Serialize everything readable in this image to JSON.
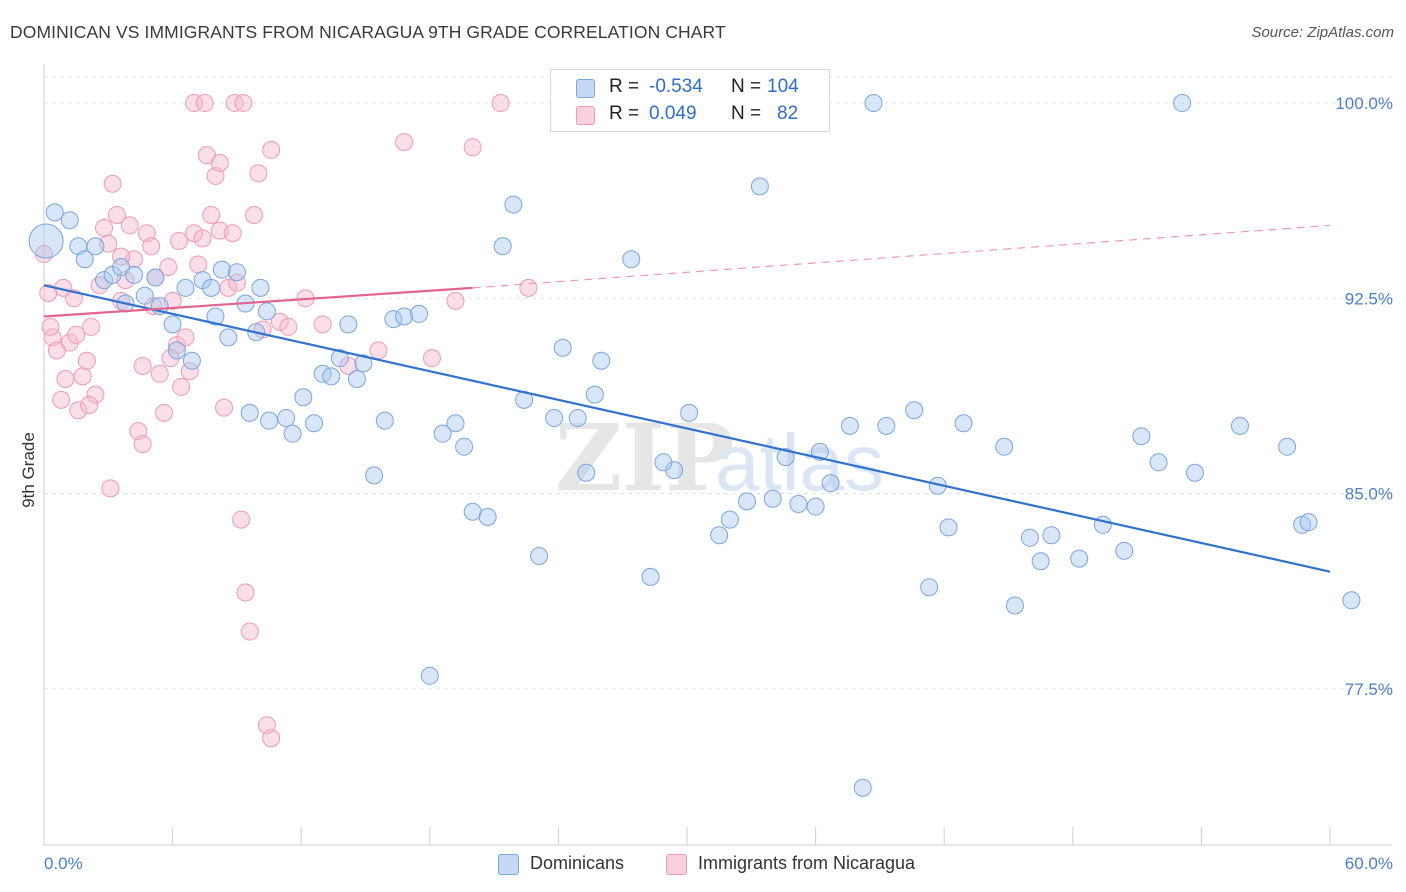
{
  "title": "DOMINICAN VS IMMIGRANTS FROM NICARAGUA 9TH GRADE CORRELATION CHART",
  "source": "Source: ZipAtlas.com",
  "watermark": {
    "part1": "ZIP",
    "part2": "atlas"
  },
  "legend_stats": [
    {
      "r_label": "R =",
      "r_value": "-0.534",
      "n_label": "N =",
      "n_value": "104",
      "color": "#a9c7ee"
    },
    {
      "r_label": "R =",
      "r_value": "0.049",
      "n_label": "N =",
      "n_value": "82",
      "color": "#f6b8cb"
    }
  ],
  "bottom_legend": [
    {
      "label": "Dominicans",
      "color": "#a9c7ee"
    },
    {
      "label": "Immigrants from Nicaragua",
      "color": "#f6b8cb"
    }
  ],
  "chart_data": {
    "type": "scatter",
    "title": "DOMINICAN VS IMMIGRANTS FROM NICARAGUA 9TH GRADE CORRELATION CHART",
    "xlabel": "",
    "ylabel": "9th Grade",
    "xlim": [
      0,
      60
    ],
    "ylim": [
      71.5,
      101.5
    ],
    "x_tick_labels": [
      "0.0%",
      "60.0%"
    ],
    "y_ticks": [
      77.5,
      85.0,
      92.5,
      100.0
    ],
    "y_tick_labels": [
      "77.5%",
      "85.0%",
      "92.5%",
      "100.0%"
    ],
    "grid": true,
    "legend_position": "top-center",
    "series": [
      {
        "name": "Dominicans",
        "color": "#6fa1e0",
        "trend": {
          "x": [
            0,
            60
          ],
          "y": [
            93.0,
            82.0
          ]
        },
        "points": [
          [
            0.1,
            94.7
          ],
          [
            0.5,
            95.8
          ],
          [
            1.2,
            95.5
          ],
          [
            1.6,
            94.5
          ],
          [
            1.9,
            94.0
          ],
          [
            2.4,
            94.5
          ],
          [
            2.8,
            93.2
          ],
          [
            3.2,
            93.4
          ],
          [
            3.6,
            93.7
          ],
          [
            3.8,
            92.3
          ],
          [
            4.2,
            93.4
          ],
          [
            4.7,
            92.6
          ],
          [
            5.2,
            93.3
          ],
          [
            5.4,
            92.2
          ],
          [
            6.0,
            91.5
          ],
          [
            6.2,
            90.5
          ],
          [
            6.6,
            92.9
          ],
          [
            6.9,
            90.1
          ],
          [
            7.4,
            93.2
          ],
          [
            7.8,
            92.9
          ],
          [
            8.0,
            91.8
          ],
          [
            8.3,
            93.6
          ],
          [
            8.6,
            91.0
          ],
          [
            9.0,
            93.5
          ],
          [
            9.4,
            92.3
          ],
          [
            9.9,
            91.2
          ],
          [
            10.1,
            92.9
          ],
          [
            10.4,
            92.0
          ],
          [
            9.6,
            88.1
          ],
          [
            10.5,
            87.8
          ],
          [
            11.3,
            87.9
          ],
          [
            11.6,
            87.3
          ],
          [
            12.1,
            88.7
          ],
          [
            12.6,
            87.7
          ],
          [
            13.0,
            89.6
          ],
          [
            13.4,
            89.5
          ],
          [
            13.8,
            90.2
          ],
          [
            14.2,
            91.5
          ],
          [
            14.6,
            89.4
          ],
          [
            14.9,
            90.0
          ],
          [
            15.4,
            85.7
          ],
          [
            15.9,
            87.8
          ],
          [
            16.3,
            91.7
          ],
          [
            16.8,
            91.8
          ],
          [
            17.5,
            91.9
          ],
          [
            18.0,
            78.0
          ],
          [
            18.6,
            87.3
          ],
          [
            19.2,
            87.7
          ],
          [
            19.6,
            86.8
          ],
          [
            20.0,
            84.3
          ],
          [
            21.4,
            94.5
          ],
          [
            21.9,
            96.1
          ],
          [
            22.4,
            88.6
          ],
          [
            23.1,
            82.6
          ],
          [
            23.8,
            87.9
          ],
          [
            24.2,
            90.6
          ],
          [
            24.9,
            87.9
          ],
          [
            25.3,
            85.8
          ],
          [
            25.7,
            88.8
          ],
          [
            26.5,
            100.0
          ],
          [
            27.4,
            94.0
          ],
          [
            27.7,
            100.0
          ],
          [
            28.3,
            81.8
          ],
          [
            29.4,
            85.9
          ],
          [
            30.1,
            88.1
          ],
          [
            31.5,
            83.4
          ],
          [
            32.8,
            84.7
          ],
          [
            33.4,
            96.8
          ],
          [
            34.0,
            84.8
          ],
          [
            34.6,
            86.4
          ],
          [
            35.2,
            84.6
          ],
          [
            36.0,
            84.5
          ],
          [
            36.7,
            85.4
          ],
          [
            37.6,
            87.6
          ],
          [
            38.2,
            73.7
          ],
          [
            38.7,
            100.0
          ],
          [
            39.3,
            87.6
          ],
          [
            40.6,
            88.2
          ],
          [
            41.3,
            81.4
          ],
          [
            41.7,
            85.3
          ],
          [
            42.2,
            83.7
          ],
          [
            42.9,
            87.7
          ],
          [
            44.8,
            86.8
          ],
          [
            45.3,
            80.7
          ],
          [
            46.0,
            83.3
          ],
          [
            46.5,
            82.4
          ],
          [
            47.0,
            83.4
          ],
          [
            48.3,
            82.5
          ],
          [
            49.4,
            83.8
          ],
          [
            50.4,
            82.8
          ],
          [
            51.2,
            87.2
          ],
          [
            52.0,
            86.2
          ],
          [
            53.7,
            85.8
          ],
          [
            53.1,
            100.0
          ],
          [
            55.8,
            87.6
          ],
          [
            58.0,
            86.8
          ],
          [
            58.7,
            83.8
          ],
          [
            59.0,
            83.9
          ],
          [
            61.0,
            80.9
          ],
          [
            36.2,
            86.6
          ],
          [
            32.0,
            84.0
          ],
          [
            20.7,
            84.1
          ],
          [
            28.9,
            86.2
          ],
          [
            26.0,
            90.1
          ]
        ]
      },
      {
        "name": "Immigrants from Nicaragua",
        "color": "#f092b1",
        "trend": {
          "x": [
            0,
            20
          ],
          "y": [
            91.8,
            92.9
          ]
        },
        "trend_ext": {
          "x": [
            20,
            60
          ],
          "y": [
            92.9,
            95.3
          ]
        },
        "points": [
          [
            0.0,
            94.2
          ],
          [
            0.2,
            92.7
          ],
          [
            0.4,
            91.0
          ],
          [
            0.6,
            90.5
          ],
          [
            0.8,
            88.6
          ],
          [
            1.0,
            89.4
          ],
          [
            1.2,
            90.8
          ],
          [
            1.4,
            92.5
          ],
          [
            1.6,
            88.2
          ],
          [
            1.8,
            89.5
          ],
          [
            2.0,
            90.1
          ],
          [
            2.2,
            91.4
          ],
          [
            2.4,
            88.8
          ],
          [
            2.6,
            93.0
          ],
          [
            2.8,
            95.2
          ],
          [
            3.0,
            94.6
          ],
          [
            3.2,
            96.9
          ],
          [
            3.4,
            95.7
          ],
          [
            3.6,
            92.4
          ],
          [
            3.8,
            93.2
          ],
          [
            4.0,
            95.3
          ],
          [
            4.2,
            94.0
          ],
          [
            4.4,
            87.4
          ],
          [
            4.6,
            86.9
          ],
          [
            4.8,
            95.0
          ],
          [
            5.0,
            94.5
          ],
          [
            5.2,
            93.3
          ],
          [
            5.4,
            89.6
          ],
          [
            5.6,
            88.1
          ],
          [
            5.8,
            93.7
          ],
          [
            6.0,
            92.4
          ],
          [
            6.2,
            90.7
          ],
          [
            6.4,
            89.1
          ],
          [
            6.6,
            91.0
          ],
          [
            6.8,
            89.7
          ],
          [
            7.0,
            95.0
          ],
          [
            7.2,
            93.8
          ],
          [
            7.4,
            94.8
          ],
          [
            7.6,
            98.0
          ],
          [
            7.8,
            95.7
          ],
          [
            8.0,
            97.2
          ],
          [
            8.2,
            95.1
          ],
          [
            8.4,
            88.3
          ],
          [
            8.6,
            92.9
          ],
          [
            8.8,
            95.0
          ],
          [
            9.0,
            93.1
          ],
          [
            9.2,
            84.0
          ],
          [
            9.4,
            81.2
          ],
          [
            9.6,
            79.7
          ],
          [
            9.8,
            95.7
          ],
          [
            10.0,
            97.3
          ],
          [
            10.2,
            91.3
          ],
          [
            10.4,
            76.1
          ],
          [
            10.6,
            75.6
          ],
          [
            11.0,
            91.6
          ],
          [
            11.4,
            91.4
          ],
          [
            12.2,
            92.5
          ],
          [
            13.0,
            91.5
          ],
          [
            14.2,
            89.9
          ],
          [
            15.6,
            90.5
          ],
          [
            16.8,
            98.5
          ],
          [
            18.1,
            90.2
          ],
          [
            19.2,
            92.4
          ],
          [
            20.0,
            98.3
          ],
          [
            21.3,
            100.0
          ],
          [
            22.6,
            92.9
          ],
          [
            4.6,
            89.9
          ],
          [
            3.1,
            85.2
          ],
          [
            5.9,
            90.2
          ],
          [
            6.3,
            94.7
          ],
          [
            7.0,
            100.0
          ],
          [
            7.5,
            100.0
          ],
          [
            8.2,
            97.7
          ],
          [
            8.9,
            100.0
          ],
          [
            9.3,
            100.0
          ],
          [
            3.6,
            94.1
          ],
          [
            2.1,
            88.4
          ],
          [
            1.5,
            91.1
          ],
          [
            0.9,
            92.9
          ],
          [
            0.3,
            91.4
          ],
          [
            5.1,
            92.2
          ],
          [
            10.6,
            98.2
          ]
        ]
      }
    ]
  }
}
